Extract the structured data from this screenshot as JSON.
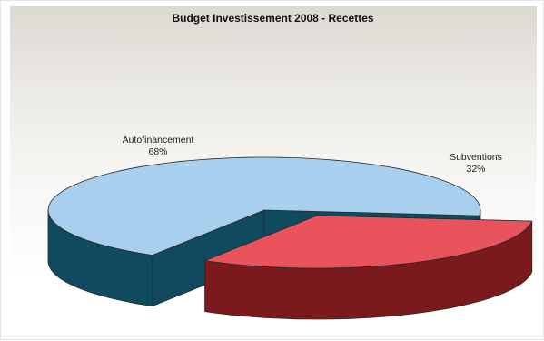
{
  "chart_data": {
    "type": "pie",
    "title": "Budget Investissement 2008 - Recettes",
    "three_d": true,
    "exploded_slice": "Subventions",
    "slices": [
      {
        "label": "Autofinancement",
        "value": 68,
        "value_label": "68%",
        "top_color": "#a9cfee",
        "side_color": "#0f4a5e"
      },
      {
        "label": "Subventions",
        "value": 32,
        "value_label": "32%",
        "top_color": "#e8535c",
        "side_color": "#7a1a1d"
      }
    ]
  }
}
